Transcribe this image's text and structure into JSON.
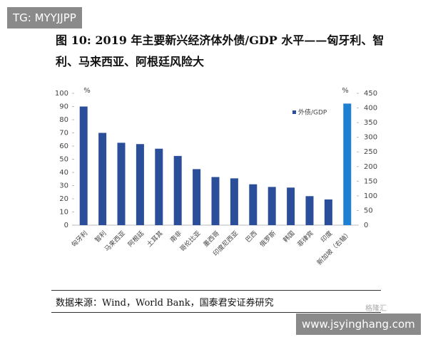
{
  "watermark_top": "TG: MYYJJPP",
  "watermark_bottom": "www.jsyinghang.com",
  "logo": "格隆汇",
  "source": "数据来源：Wind，World Bank，国泰君安证券研究",
  "chart_data": {
    "type": "bar",
    "title": "图 10: 2019 年主要新兴经济体外债/GDP 水平——匈牙利、智利、马来西亚、阿根廷风险大",
    "ylabel": "%",
    "y2label": "%",
    "categories": [
      "匈牙利",
      "智利",
      "马来西亚",
      "阿根廷",
      "土耳其",
      "南非",
      "哥伦比亚",
      "墨西哥",
      "印度尼西亚",
      "巴西",
      "俄罗斯",
      "韩国",
      "菲律宾",
      "印度",
      "新加坡（右轴）"
    ],
    "series": [
      {
        "name": "外债/GDP",
        "color": "#2b4e9a",
        "values": [
          90,
          70,
          62.5,
          61.5,
          58,
          52.5,
          42.5,
          36.5,
          35.5,
          31,
          29,
          28.5,
          22,
          19.5,
          415
        ],
        "point_axes": [
          "y",
          "y",
          "y",
          "y",
          "y",
          "y",
          "y",
          "y",
          "y",
          "y",
          "y",
          "y",
          "y",
          "y",
          "y2"
        ],
        "point_colors": [
          "#2b4e9a",
          "#2b4e9a",
          "#2b4e9a",
          "#2b4e9a",
          "#2b4e9a",
          "#2b4e9a",
          "#2b4e9a",
          "#2b4e9a",
          "#2b4e9a",
          "#2b4e9a",
          "#2b4e9a",
          "#2b4e9a",
          "#2b4e9a",
          "#2b4e9a",
          "#1f7fd0"
        ]
      }
    ],
    "ylim": [
      0,
      100
    ],
    "yticks": [
      0,
      10,
      20,
      30,
      40,
      50,
      60,
      70,
      80,
      90,
      100
    ],
    "y2lim": [
      0,
      450
    ],
    "y2ticks": [
      0,
      50,
      100,
      150,
      200,
      250,
      300,
      350,
      400,
      450
    ],
    "legend": "upper right",
    "grid": false
  }
}
